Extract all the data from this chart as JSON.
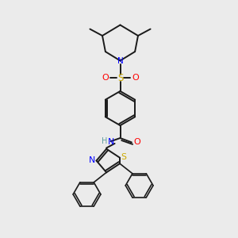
{
  "bg_color": "#ebebeb",
  "bond_color": "#1a1a1a",
  "N_color": "#0000ff",
  "S_color": "#ccaa00",
  "O_color": "#ff0000",
  "H_color": "#5f9ea0",
  "figsize": [
    3.0,
    3.0
  ],
  "dpi": 100,
  "xlim": [
    0,
    10
  ],
  "ylim": [
    0,
    10
  ]
}
